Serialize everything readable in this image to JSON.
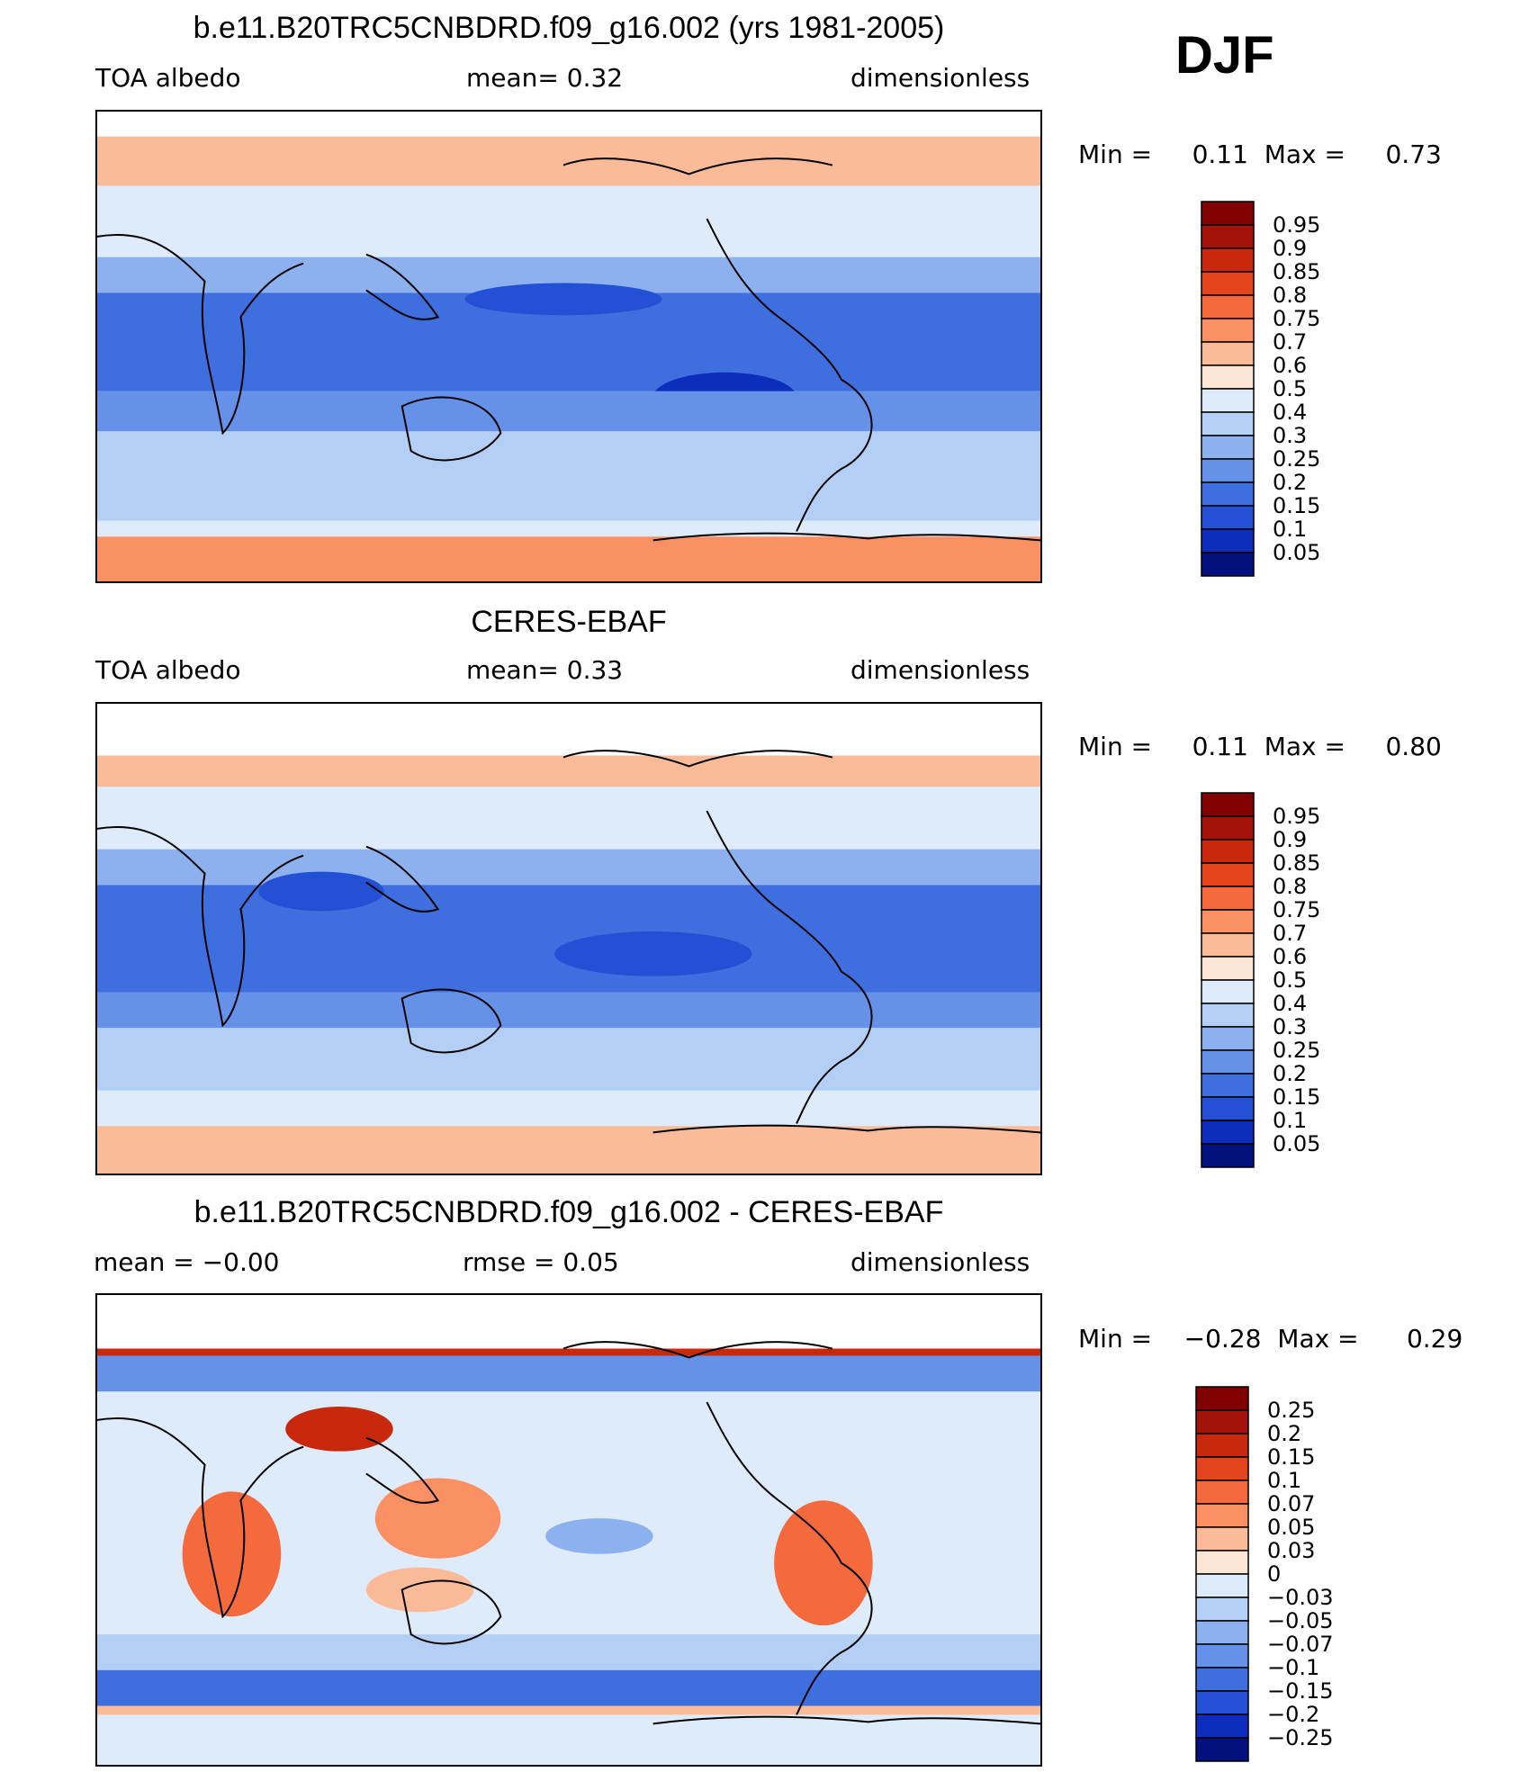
{
  "season": "DJF",
  "panels": [
    {
      "id": "model",
      "title": "b.e11.B20TRC5CNBDRD.f09_g16.002 (yrs 1981-2005)",
      "left_label": "TOA  albedo",
      "center_label": "mean=    0.32",
      "right_label": "dimensionless",
      "min_label": "Min  =",
      "min_value": "0.11",
      "max_label": "Max  =",
      "max_value": "0.73",
      "colorbar": {
        "labels": [
          "0.95",
          "0.9",
          "0.85",
          "0.8",
          "0.75",
          "0.7",
          "0.6",
          "0.5",
          "0.4",
          "0.3",
          "0.25",
          "0.2",
          "0.15",
          "0.1",
          "0.05"
        ],
        "colors": [
          "#800000",
          "#a21208",
          "#c8290d",
          "#e3441c",
          "#f46a3c",
          "#fb9064",
          "#fcbb98",
          "#fde6d3",
          "#ddebfb",
          "#b4cff5",
          "#8db1ef",
          "#6592e8",
          "#3f6fdf",
          "#2350d4",
          "#0d2ebc",
          "#03117e"
        ]
      }
    },
    {
      "id": "obs",
      "title": "CERES-EBAF",
      "left_label": "TOA  albedo",
      "center_label": "mean=    0.33",
      "right_label": "dimensionless",
      "min_label": "Min  =",
      "min_value": "0.11",
      "max_label": "Max  =",
      "max_value": "0.80",
      "colorbar": {
        "labels": [
          "0.95",
          "0.9",
          "0.85",
          "0.8",
          "0.75",
          "0.7",
          "0.6",
          "0.5",
          "0.4",
          "0.3",
          "0.25",
          "0.2",
          "0.15",
          "0.1",
          "0.05"
        ],
        "colors": [
          "#800000",
          "#a21208",
          "#c8290d",
          "#e3441c",
          "#f46a3c",
          "#fb9064",
          "#fcbb98",
          "#fde6d3",
          "#ddebfb",
          "#b4cff5",
          "#8db1ef",
          "#6592e8",
          "#3f6fdf",
          "#2350d4",
          "#0d2ebc",
          "#03117e"
        ]
      }
    },
    {
      "id": "diff",
      "title": "b.e11.B20TRC5CNBDRD.f09_g16.002 - CERES-EBAF",
      "left_label": "mean  =    −0.00",
      "center_label": "rmse  =    0.05",
      "right_label": "dimensionless",
      "min_label": "Min  =",
      "min_value": "−0.28",
      "max_label": "Max  =",
      "max_value": "0.29",
      "colorbar": {
        "labels": [
          "0.25",
          "0.2",
          "0.15",
          "0.1",
          "0.07",
          "0.05",
          "0.03",
          "0",
          "−0.03",
          "−0.05",
          "−0.07",
          "−0.1",
          "−0.15",
          "−0.2",
          "−0.25"
        ],
        "colors": [
          "#800000",
          "#a21208",
          "#c8290d",
          "#e3441c",
          "#f46a3c",
          "#fb9064",
          "#fcbb98",
          "#fde6d3",
          "#ddebfb",
          "#b4cff5",
          "#8db1ef",
          "#6592e8",
          "#3f6fdf",
          "#2350d4",
          "#0d2ebc",
          "#03117e"
        ]
      }
    }
  ]
}
